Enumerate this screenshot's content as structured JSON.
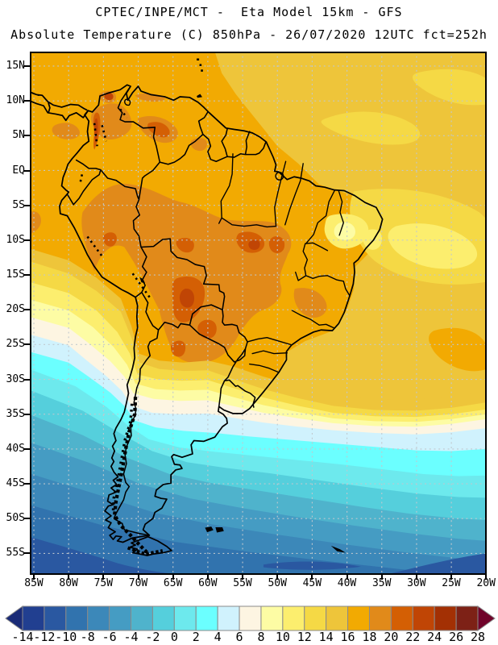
{
  "header": {
    "line1": "CPTEC/INPE/MCT -  Eta Model 15km - GFS",
    "line2": "Absolute Temperature (C) 850hPa - 26/07/2020 12UTC fct=252h"
  },
  "map": {
    "lat_labels": [
      "15N",
      "10N",
      "5N",
      "EQ",
      "5S",
      "10S",
      "15S",
      "20S",
      "25S",
      "30S",
      "35S",
      "40S",
      "45S",
      "50S",
      "55S"
    ],
    "lon_labels": [
      "85W",
      "80W",
      "75W",
      "70W",
      "65W",
      "60W",
      "55W",
      "50W",
      "45W",
      "40W",
      "35W",
      "30W",
      "25W",
      "20W"
    ]
  },
  "colorbar": {
    "tick_values": [
      "-14",
      "-12",
      "-10",
      "-8",
      "-6",
      "-4",
      "-2",
      "0",
      "2",
      "4",
      "6",
      "8",
      "10",
      "12",
      "14",
      "16",
      "18",
      "20",
      "22",
      "24",
      "26",
      "28"
    ],
    "cell_colors": [
      "#213F90",
      "#2A58A1",
      "#3173AE",
      "#3C88B9",
      "#459CC3",
      "#4FB3CC",
      "#55CFDC",
      "#6DE9ED",
      "#6BFFFF",
      "#D0F2FD",
      "#FDF5E2",
      "#FDFCA4",
      "#FCEE6E",
      "#F5D945",
      "#EEC53A",
      "#F2AA02",
      "#E18A1A",
      "#D45F04",
      "#C04505",
      "#A33004",
      "#7D2116"
    ],
    "left_arrow_color": "#1A2B77",
    "right_arrow_color": "#70032A"
  }
}
